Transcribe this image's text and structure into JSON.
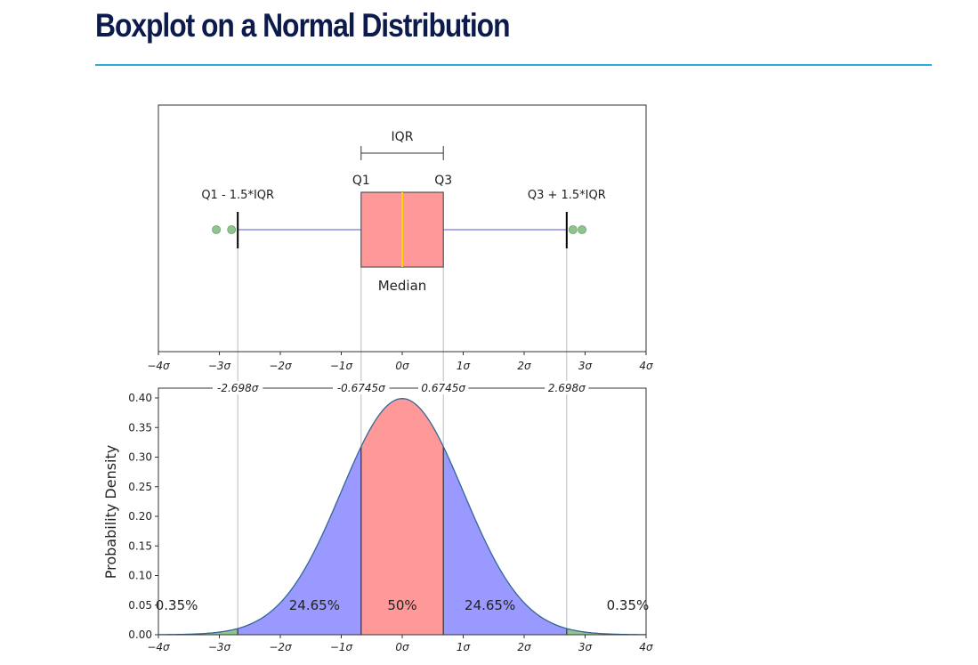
{
  "header": {
    "title": "Boxplot on a Normal Distribution",
    "accent_color": "#29abe2",
    "title_color": "#0d1b4c"
  },
  "chart_data": [
    {
      "type": "boxplot",
      "orientation": "horizontal",
      "xlim": [
        -4,
        4
      ],
      "x_tick_labels": [
        "−4σ",
        "−3σ",
        "−2σ",
        "−1σ",
        "0σ",
        "1σ",
        "2σ",
        "3σ",
        "4σ"
      ],
      "x_ticks": [
        -4,
        -3,
        -2,
        -1,
        0,
        1,
        2,
        3,
        4
      ],
      "box": {
        "q1": -0.6745,
        "median": 0,
        "q3": 0.6745,
        "whisker_low": -2.698,
        "whisker_high": 2.698
      },
      "outliers": [
        -3.05,
        -2.8,
        2.8,
        2.95
      ],
      "annotations": {
        "iqr": "IQR",
        "q1": "Q1",
        "q3": "Q3",
        "lower_fence": "Q1 - 1.5*IQR",
        "upper_fence": "Q3 + 1.5*IQR",
        "median": "Median"
      },
      "colors": {
        "box": "#ff9999",
        "median": "#ffd700",
        "whisker": "#7777dd",
        "outlier": "#8fc48f"
      }
    },
    {
      "type": "area",
      "series": "normal probability density",
      "ylabel": "Probability Density",
      "xlim": [
        -4,
        4
      ],
      "ylim": [
        0,
        0.4
      ],
      "x_ticks": [
        -4,
        -3,
        -2,
        -1,
        0,
        1,
        2,
        3,
        4
      ],
      "x_tick_labels": [
        "−4σ",
        "−3σ",
        "−2σ",
        "−1σ",
        "0σ",
        "1σ",
        "2σ",
        "3σ",
        "4σ"
      ],
      "y_ticks": [
        0.0,
        0.05,
        0.1,
        0.15,
        0.2,
        0.25,
        0.3,
        0.35,
        0.4
      ],
      "y_tick_labels": [
        "0.00",
        "0.05",
        "0.10",
        "0.15",
        "0.20",
        "0.25",
        "0.30",
        "0.35",
        "0.40"
      ],
      "top_ticks": [
        -2.698,
        -0.6745,
        0.6745,
        2.698
      ],
      "top_tick_labels": [
        "-2.698σ",
        "-0.6745σ",
        "0.6745σ",
        "2.698σ"
      ],
      "regions": [
        {
          "from": -4,
          "to": -2.698,
          "percent": "0.35%",
          "color": "#8fc48f"
        },
        {
          "from": -2.698,
          "to": -0.6745,
          "percent": "24.65%",
          "color": "#9999ff"
        },
        {
          "from": -0.6745,
          "to": 0.6745,
          "percent": "50%",
          "color": "#ff9999"
        },
        {
          "from": 0.6745,
          "to": 2.698,
          "percent": "24.65%",
          "color": "#9999ff"
        },
        {
          "from": 2.698,
          "to": 4,
          "percent": "0.35%",
          "color": "#8fc48f"
        }
      ],
      "curve_color": "#336699"
    }
  ]
}
